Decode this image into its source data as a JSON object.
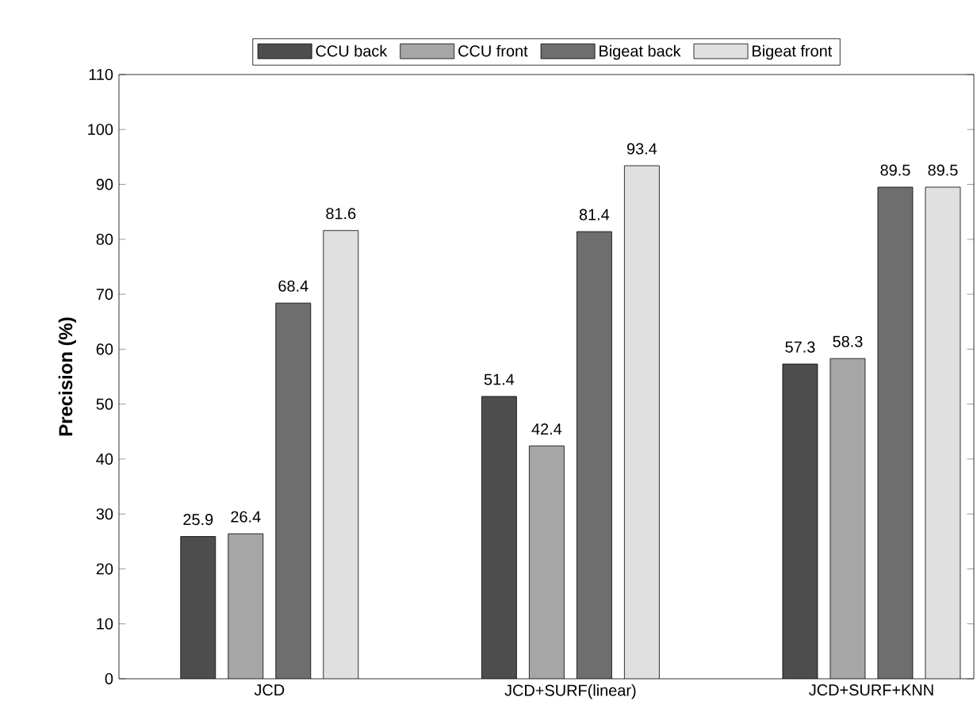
{
  "chart_data": {
    "type": "bar",
    "ylabel": "Precision (%)",
    "categories": [
      "JCD",
      "JCD+SURF(linear)",
      "JCD+SURF+KNN"
    ],
    "series": [
      {
        "name": "CCU back",
        "color": "#4d4d4d",
        "values": [
          25.9,
          51.4,
          57.3
        ]
      },
      {
        "name": "CCU front",
        "color": "#a6a6a6",
        "values": [
          26.4,
          42.4,
          58.3
        ]
      },
      {
        "name": "Bigeat back",
        "color": "#6e6e6e",
        "values": [
          68.4,
          81.4,
          89.5
        ]
      },
      {
        "name": "Bigeat front",
        "color": "#e0e0e0",
        "values": [
          81.6,
          93.4,
          89.5
        ]
      }
    ],
    "ylim": [
      0,
      110
    ],
    "yticks": [
      0,
      10,
      20,
      30,
      40,
      50,
      60,
      70,
      80,
      90,
      100,
      110
    ],
    "data_labels": true,
    "legend": "top",
    "grid": false
  }
}
